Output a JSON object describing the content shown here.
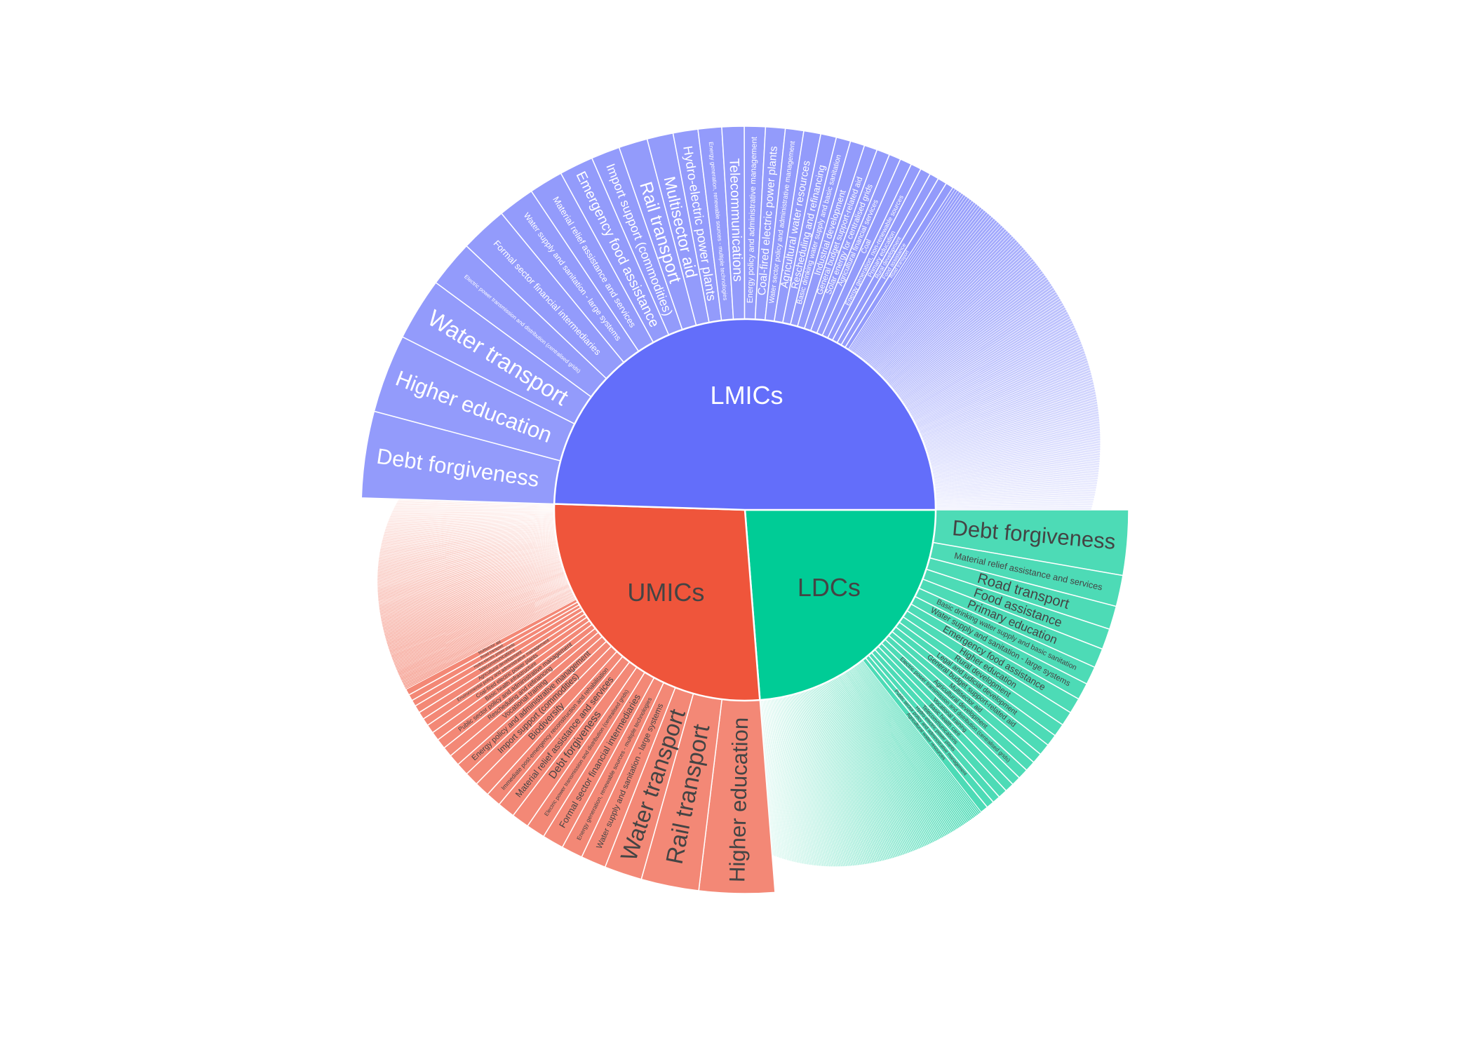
{
  "chart_data": {
    "type": "sunburst",
    "title": "",
    "colors": {
      "LMICs": {
        "inner": "#636efa",
        "outer": "#939bfb",
        "text_inner": "#ffffff",
        "text_outer": "#ffffff"
      },
      "UMICs": {
        "inner": "#ef553b",
        "outer": "#f38876",
        "text_inner": "#444444",
        "text_outer": "#444444"
      },
      "LDCs": {
        "inner": "#00cc96",
        "outer": "#4ddbb6",
        "text_inner": "#444444",
        "text_outer": "#444444"
      }
    },
    "groups": [
      {
        "name": "LMICs",
        "value": 49.5,
        "tail_count": 150,
        "tail_value": 14.4,
        "children": [
          {
            "label": "Debt forgiveness",
            "value": 3.3
          },
          {
            "label": "Higher education",
            "value": 3.0
          },
          {
            "label": "Electric power transmission and distribution (centralised grids)",
            "value": 1.8
          },
          {
            "label": "Water transport",
            "value": 2.4
          },
          {
            "label": "Formal sector financial intermediaries",
            "value": 1.8
          },
          {
            "label": "Water supply and sanitation - large systems",
            "value": 1.4
          },
          {
            "label": "Material relief assistance and services",
            "value": 1.3
          },
          {
            "label": "Emergency food assistance",
            "value": 1.3
          },
          {
            "label": "Import support (commodities)",
            "value": 1.1
          },
          {
            "label": "Rail transport",
            "value": 1.1
          },
          {
            "label": "Multisector aid",
            "value": 1.0
          },
          {
            "label": "Hydro-electric power plants",
            "value": 0.95
          },
          {
            "label": "Energy generation, renewable sources - multiple technologies",
            "value": 0.9
          },
          {
            "label": "Telecommunications",
            "value": 0.85
          },
          {
            "label": "Energy policy and administrative management",
            "value": 0.8
          },
          {
            "label": "Coal-fired electric power plants",
            "value": 0.75
          },
          {
            "label": "Water sector policy and administrative management",
            "value": 0.7
          },
          {
            "label": "Agricultural water resources",
            "value": 0.65
          },
          {
            "label": "Rescheduling and refinancing",
            "value": 0.6
          },
          {
            "label": "Basic drinking water supply and basic sanitation",
            "value": 0.55
          },
          {
            "label": "Industrial development",
            "value": 0.55
          },
          {
            "label": "General budget support-related aid",
            "value": 0.5
          },
          {
            "label": "Solar energy for centralised grids",
            "value": 0.5
          },
          {
            "label": "Agricultural financial services",
            "value": 0.45
          },
          {
            "label": "Coal",
            "value": 0.45
          },
          {
            "label": "Energy generation, non-renewable sources",
            "value": 0.4
          },
          {
            "label": "Primary education",
            "value": 0.4
          },
          {
            "label": "Rural development",
            "value": 0.35
          },
          {
            "label": "Food assistance",
            "value": 0.35
          },
          {
            "label": "Road transport",
            "value": 0.3
          }
        ]
      },
      {
        "name": "UMICs",
        "value": 26.75,
        "tail_count": 150,
        "tail_value": 7.8,
        "children": [
          {
            "label": "Higher education",
            "value": 3.0
          },
          {
            "label": "Rail transport",
            "value": 2.3
          },
          {
            "label": "Water transport",
            "value": 1.5
          },
          {
            "label": "Water supply and sanitation - large systems",
            "value": 1.0
          },
          {
            "label": "Energy generation, renewable sources - multiple technologies",
            "value": 0.85
          },
          {
            "label": "Formal sector financial intermediaries",
            "value": 0.85
          },
          {
            "label": "Electric power transmission and distribution (centralised grids)",
            "value": 0.75
          },
          {
            "label": "Debt forgiveness",
            "value": 0.7
          },
          {
            "label": "Material relief assistance and services",
            "value": 0.7
          },
          {
            "label": "Immediate post-emergency reconstruction and rehabilitation",
            "value": 0.6
          },
          {
            "label": "Biodiversity",
            "value": 0.6
          },
          {
            "label": "Import support (commodities)",
            "value": 0.55
          },
          {
            "label": "Energy policy and administrative management",
            "value": 0.5
          },
          {
            "label": "Vocational training",
            "value": 0.45
          },
          {
            "label": "Rescheduling and refinancing",
            "value": 0.4
          },
          {
            "label": "Public sector policy and administrative management",
            "value": 0.4
          },
          {
            "label": "Basic health infrastructure",
            "value": 0.35
          },
          {
            "label": "Coal-fired electric power plants",
            "value": 0.35
          },
          {
            "label": "Environmental policy and administrative management",
            "value": 0.3
          },
          {
            "label": "Agricultural development",
            "value": 0.3
          },
          {
            "label": "Telecommunications",
            "value": 0.3
          },
          {
            "label": "Hydro-electric power plants",
            "value": 0.25
          },
          {
            "label": "Road transport",
            "value": 0.25
          },
          {
            "label": "Multisector aid",
            "value": 0.25
          }
        ]
      },
      {
        "name": "LDCs",
        "value": 23.75,
        "tail_count": 130,
        "tail_value": 8.5,
        "children": [
          {
            "label": "Debt forgiveness",
            "value": 2.5
          },
          {
            "label": "Material relief assistance and services",
            "value": 1.2
          },
          {
            "label": "Road transport",
            "value": 0.9
          },
          {
            "label": "Food assistance",
            "value": 0.8
          },
          {
            "label": "Primary education",
            "value": 0.75
          },
          {
            "label": "Basic drinking water supply and basic sanitation",
            "value": 0.7
          },
          {
            "label": "Water supply and sanitation - large systems",
            "value": 0.65
          },
          {
            "label": "Emergency food assistance",
            "value": 0.6
          },
          {
            "label": "Higher education",
            "value": 0.55
          },
          {
            "label": "Rural development",
            "value": 0.5
          },
          {
            "label": "Legal and judicial development",
            "value": 0.45
          },
          {
            "label": "General budget support-related aid",
            "value": 0.45
          },
          {
            "label": "Multisector aid",
            "value": 0.4
          },
          {
            "label": "Agricultural development",
            "value": 0.4
          },
          {
            "label": "Electric power transmission and distribution (centralised grids)",
            "value": 0.4
          },
          {
            "label": "Vocational training",
            "value": 0.35
          },
          {
            "label": "Basic health care",
            "value": 0.35
          },
          {
            "label": "Telecommunications",
            "value": 0.35
          },
          {
            "label": "Hydro-electric power plants",
            "value": 0.3
          },
          {
            "label": "Public sector policy and administrative management",
            "value": 0.3
          },
          {
            "label": "Agricultural water resources",
            "value": 0.3
          }
        ]
      }
    ]
  }
}
